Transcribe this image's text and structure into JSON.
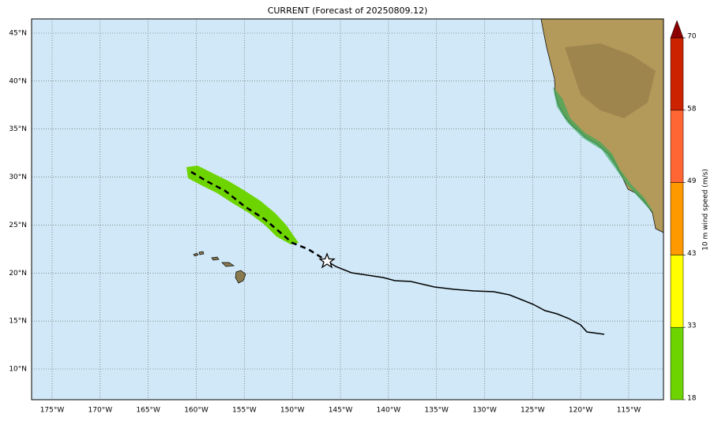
{
  "map": {
    "title": "CURRENT (Forecast of 20250809.12)",
    "lon_ticks": [
      {
        "value": -175,
        "label": "175°W"
      },
      {
        "value": -170,
        "label": "170°W"
      },
      {
        "value": -165,
        "label": "165°W"
      },
      {
        "value": -160,
        "label": "160°W"
      },
      {
        "value": -155,
        "label": "155°W"
      },
      {
        "value": -150,
        "label": "150°W"
      },
      {
        "value": -145,
        "label": "145°W"
      },
      {
        "value": -140,
        "label": "140°W"
      },
      {
        "value": -135,
        "label": "135°W"
      },
      {
        "value": -130,
        "label": "130°W"
      },
      {
        "value": -125,
        "label": "125°W"
      },
      {
        "value": -120,
        "label": "120°W"
      },
      {
        "value": -115,
        "label": "115°W"
      }
    ],
    "lat_ticks": [
      {
        "value": 10,
        "label": "10°N"
      },
      {
        "value": 15,
        "label": "15°N"
      },
      {
        "value": 20,
        "label": "20°N"
      },
      {
        "value": 25,
        "label": "25°N"
      },
      {
        "value": 30,
        "label": "30°N"
      },
      {
        "value": 35,
        "label": "35°N"
      },
      {
        "value": 40,
        "label": "40°N"
      },
      {
        "value": 45,
        "label": "45°N"
      }
    ],
    "colorbar": {
      "label": "10 m wind speed (m/s)",
      "levels": [
        18,
        33,
        43,
        49,
        58,
        70
      ],
      "colors": [
        "#6dd400",
        "#ffff00",
        "#ff9900",
        "#ff6633",
        "#cc2200"
      ],
      "extend_color": "#8b0000"
    }
  }
}
